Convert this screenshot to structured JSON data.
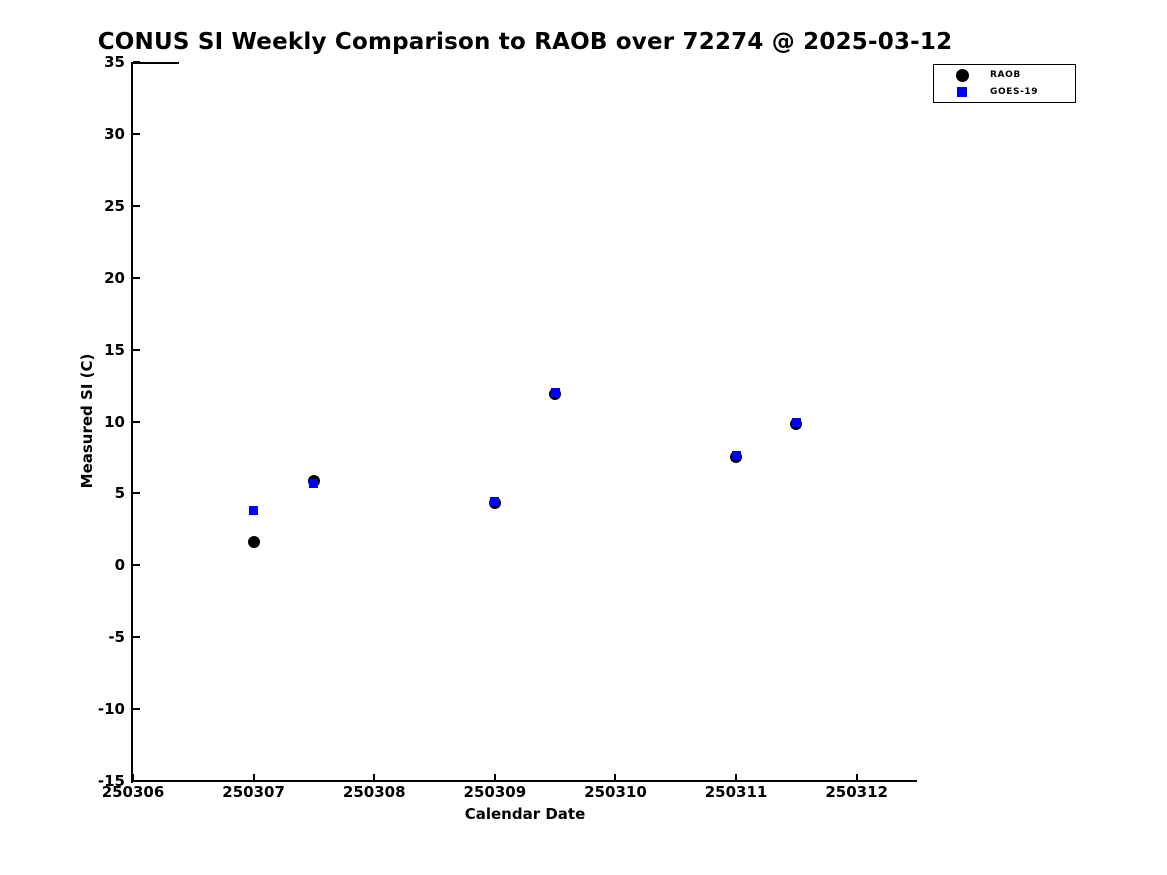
{
  "figure": {
    "background": "#ffffff",
    "axis_color": "#000000"
  },
  "chart_data": {
    "type": "scatter",
    "title": "CONUS SI Weekly Comparison to RAOB over 72274 @ 2025-03-12",
    "xlabel": "Calendar Date",
    "ylabel": "Measured SI (C)",
    "xlim": [
      250306,
      250312.5
    ],
    "ylim": [
      -15,
      35
    ],
    "xticks": [
      250306,
      250307,
      250308,
      250309,
      250310,
      250311,
      250312
    ],
    "yticks": [
      35,
      30,
      25,
      20,
      15,
      10,
      5,
      0,
      -5,
      -10,
      -15
    ],
    "grid": false,
    "legend_position": "top-right",
    "series": [
      {
        "name": "RAOB",
        "marker": "circle",
        "color": "#000000",
        "marker_size": 12,
        "x": [
          250307,
          250307.5,
          250309,
          250309.5,
          250311,
          250311.5
        ],
        "y": [
          1.6,
          5.85,
          4.35,
          11.9,
          7.5,
          9.8
        ]
      },
      {
        "name": "GOES-19",
        "marker": "square",
        "color": "#0000ff",
        "marker_size": 9,
        "x": [
          250307,
          250307.5,
          250309,
          250309.5,
          250311,
          250311.5
        ],
        "y": [
          3.8,
          5.7,
          4.45,
          12.0,
          7.65,
          9.95
        ]
      }
    ]
  }
}
